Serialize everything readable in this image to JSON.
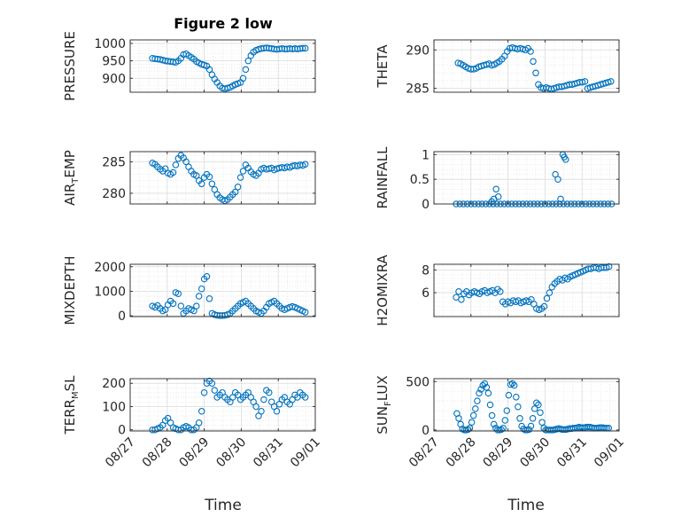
{
  "figure": {
    "title": "Figure 2 low",
    "marker_color": "#0072BD"
  },
  "chart_data": [
    {
      "type": "scatter",
      "ylabel": "PRESSURE",
      "ylabel_sub": "",
      "ylabel_tail": "",
      "xlim": [
        0,
        5
      ],
      "ylim": [
        860,
        1010
      ],
      "yticks": [
        900,
        950,
        1000
      ],
      "x": [
        0.6,
        0.67,
        0.74,
        0.81,
        0.88,
        0.95,
        1.02,
        1.09,
        1.16,
        1.23,
        1.3,
        1.37,
        1.44,
        1.51,
        1.58,
        1.65,
        1.72,
        1.79,
        1.86,
        1.93,
        2.0,
        2.07,
        2.14,
        2.21,
        2.28,
        2.35,
        2.42,
        2.49,
        2.56,
        2.63,
        2.7,
        2.77,
        2.84,
        2.91,
        2.98,
        3.05,
        3.12,
        3.19,
        3.26,
        3.33,
        3.4,
        3.47,
        3.54,
        3.61,
        3.68,
        3.75,
        3.82,
        3.89,
        3.96,
        4.03,
        4.1,
        4.17,
        4.24,
        4.31,
        4.38,
        4.45,
        4.52,
        4.59,
        4.66,
        4.73
      ],
      "y": [
        957,
        956,
        955,
        954,
        952,
        950,
        949,
        948,
        947,
        946,
        950,
        957,
        968,
        970,
        965,
        960,
        955,
        948,
        944,
        940,
        938,
        935,
        925,
        910,
        898,
        888,
        878,
        872,
        870,
        872,
        874,
        878,
        882,
        885,
        888,
        900,
        925,
        950,
        965,
        975,
        980,
        983,
        985,
        986,
        987,
        986,
        985,
        984,
        983,
        984,
        985,
        984,
        984,
        985,
        984,
        985,
        984,
        985,
        986,
        986
      ]
    },
    {
      "type": "scatter",
      "ylabel": "THETA",
      "ylabel_sub": "",
      "ylabel_tail": "",
      "xlim": [
        0,
        5
      ],
      "ylim": [
        284.5,
        291.3
      ],
      "yticks": [
        285,
        290
      ],
      "x": [
        0.65,
        0.72,
        0.79,
        0.86,
        0.93,
        1.0,
        1.07,
        1.14,
        1.21,
        1.28,
        1.35,
        1.42,
        1.49,
        1.56,
        1.63,
        1.7,
        1.77,
        1.84,
        1.91,
        1.98,
        2.05,
        2.12,
        2.19,
        2.26,
        2.33,
        2.4,
        2.47,
        2.54,
        2.61,
        2.68,
        2.75,
        2.82,
        2.89,
        2.96,
        3.03,
        3.1,
        3.17,
        3.24,
        3.31,
        3.38,
        3.45,
        3.52,
        3.59,
        3.66,
        3.73,
        3.8,
        3.87,
        3.94,
        4.01,
        4.08,
        4.15,
        4.22,
        4.29,
        4.36,
        4.43,
        4.5,
        4.57,
        4.64,
        4.71,
        4.78
      ],
      "y": [
        288.3,
        288.2,
        288.0,
        287.8,
        287.6,
        287.5,
        287.5,
        287.6,
        287.8,
        287.9,
        288.0,
        288.1,
        288.2,
        288.0,
        288.1,
        288.3,
        288.5,
        288.8,
        289.2,
        289.8,
        290.2,
        290.3,
        290.2,
        290.1,
        290.2,
        290.1,
        290.0,
        290.2,
        289.8,
        288.5,
        287.0,
        285.5,
        285.1,
        285.0,
        285.1,
        285.0,
        284.9,
        285.0,
        285.1,
        285.2,
        285.2,
        285.3,
        285.4,
        285.5,
        285.5,
        285.6,
        285.7,
        285.8,
        285.8,
        285.9,
        285.0,
        285.1,
        285.2,
        285.3,
        285.4,
        285.5,
        285.6,
        285.7,
        285.8,
        285.9
      ]
    },
    {
      "type": "scatter",
      "ylabel": "AIR",
      "ylabel_sub": "T",
      "ylabel_tail": "EMP",
      "xlim": [
        0,
        5
      ],
      "ylim": [
        278.3,
        286.6
      ],
      "yticks": [
        280,
        285
      ],
      "x": [
        0.6,
        0.67,
        0.74,
        0.81,
        0.88,
        0.95,
        1.02,
        1.09,
        1.16,
        1.23,
        1.3,
        1.37,
        1.44,
        1.51,
        1.58,
        1.65,
        1.72,
        1.79,
        1.86,
        1.93,
        2.0,
        2.07,
        2.14,
        2.21,
        2.28,
        2.35,
        2.42,
        2.49,
        2.56,
        2.63,
        2.7,
        2.77,
        2.84,
        2.91,
        2.98,
        3.05,
        3.12,
        3.19,
        3.26,
        3.33,
        3.4,
        3.47,
        3.54,
        3.61,
        3.68,
        3.75,
        3.82,
        3.89,
        3.96,
        4.03,
        4.1,
        4.17,
        4.24,
        4.31,
        4.38,
        4.45,
        4.52,
        4.59,
        4.66,
        4.73
      ],
      "y": [
        284.8,
        284.6,
        284.2,
        283.8,
        283.5,
        283.9,
        283.2,
        283.0,
        283.3,
        284.5,
        285.5,
        286.0,
        285.6,
        285.0,
        284.2,
        283.5,
        283.0,
        282.8,
        282.0,
        281.5,
        282.5,
        283.0,
        282.6,
        281.5,
        280.6,
        279.8,
        279.3,
        279.0,
        278.8,
        279.0,
        279.4,
        279.8,
        280.2,
        281.0,
        282.5,
        283.5,
        284.5,
        284.0,
        283.4,
        283.0,
        282.8,
        283.2,
        283.8,
        284.0,
        283.8,
        283.9,
        284.0,
        283.7,
        283.9,
        284.0,
        284.1,
        284.0,
        284.2,
        284.1,
        284.3,
        284.4,
        284.3,
        284.5,
        284.4,
        284.6
      ]
    },
    {
      "type": "scatter",
      "ylabel": "RAINFALL",
      "ylabel_sub": "",
      "ylabel_tail": "",
      "xlim": [
        0,
        5
      ],
      "ylim": [
        0,
        1.06
      ],
      "yticks": [
        0,
        0.5,
        1
      ],
      "x": [
        0.6,
        0.7,
        0.8,
        0.9,
        1.0,
        1.1,
        1.2,
        1.3,
        1.4,
        1.5,
        1.6,
        1.7,
        1.8,
        1.9,
        2.0,
        2.1,
        2.2,
        2.3,
        2.4,
        2.5,
        2.6,
        2.7,
        2.8,
        2.9,
        3.0,
        3.1,
        3.2,
        3.3,
        3.4,
        3.5,
        3.6,
        3.7,
        3.8,
        3.9,
        4.0,
        4.1,
        4.2,
        4.3,
        4.4,
        4.5,
        4.6,
        4.7,
        4.8,
        1.62,
        1.68,
        1.74,
        1.56,
        3.28,
        3.35,
        3.48,
        3.52,
        3.56,
        3.42
      ],
      "y": [
        0,
        0,
        0,
        0,
        0,
        0,
        0,
        0,
        0,
        0,
        0,
        0,
        0,
        0,
        0,
        0,
        0,
        0,
        0,
        0,
        0,
        0,
        0,
        0,
        0,
        0,
        0,
        0,
        0,
        0,
        0,
        0,
        0,
        0,
        0,
        0,
        0,
        0,
        0,
        0,
        0,
        0,
        0,
        0.1,
        0.3,
        0.15,
        0.05,
        0.6,
        0.5,
        1.0,
        0.95,
        0.9,
        0.1
      ]
    },
    {
      "type": "scatter",
      "ylabel": "MIXDEPTH",
      "ylabel_sub": "",
      "ylabel_tail": "",
      "xlim": [
        0,
        5
      ],
      "ylim": [
        -30,
        2100
      ],
      "yticks": [
        0,
        1000,
        2000
      ],
      "x": [
        0.6,
        0.67,
        0.74,
        0.81,
        0.88,
        0.95,
        1.02,
        1.09,
        1.16,
        1.23,
        1.3,
        1.37,
        1.44,
        1.51,
        1.58,
        1.65,
        1.72,
        1.79,
        1.86,
        1.93,
        2.0,
        2.07,
        2.14,
        2.21,
        2.28,
        2.35,
        2.42,
        2.49,
        2.56,
        2.63,
        2.7,
        2.77,
        2.84,
        2.91,
        2.98,
        3.05,
        3.12,
        3.19,
        3.26,
        3.33,
        3.4,
        3.47,
        3.54,
        3.61,
        3.68,
        3.75,
        3.82,
        3.89,
        3.96,
        4.03,
        4.1,
        4.17,
        4.24,
        4.31,
        4.38,
        4.45,
        4.52,
        4.59,
        4.66,
        4.73
      ],
      "y": [
        400,
        350,
        420,
        300,
        200,
        250,
        450,
        600,
        500,
        950,
        900,
        400,
        100,
        200,
        300,
        250,
        200,
        400,
        800,
        1100,
        1500,
        1600,
        700,
        100,
        50,
        20,
        10,
        10,
        20,
        50,
        100,
        200,
        300,
        400,
        500,
        550,
        600,
        500,
        400,
        300,
        200,
        150,
        100,
        200,
        350,
        500,
        550,
        600,
        500,
        400,
        300,
        250,
        300,
        350,
        380,
        350,
        300,
        250,
        200,
        150
      ]
    },
    {
      "type": "scatter",
      "ylabel": "H2OMIXRA",
      "ylabel_sub": "",
      "ylabel_tail": "",
      "xlim": [
        0,
        5
      ],
      "ylim": [
        3.9,
        8.5
      ],
      "yticks": [
        6,
        8
      ],
      "x": [
        0.6,
        0.67,
        0.74,
        0.81,
        0.88,
        0.95,
        1.02,
        1.09,
        1.16,
        1.23,
        1.3,
        1.37,
        1.44,
        1.51,
        1.58,
        1.65,
        1.72,
        1.79,
        1.86,
        1.93,
        2.0,
        2.07,
        2.14,
        2.21,
        2.28,
        2.35,
        2.42,
        2.49,
        2.56,
        2.63,
        2.7,
        2.77,
        2.84,
        2.91,
        2.98,
        3.05,
        3.12,
        3.19,
        3.26,
        3.33,
        3.4,
        3.47,
        3.54,
        3.61,
        3.68,
        3.75,
        3.82,
        3.89,
        3.96,
        4.03,
        4.1,
        4.17,
        4.24,
        4.31,
        4.38,
        4.45,
        4.52,
        4.59,
        4.66,
        4.73
      ],
      "y": [
        5.6,
        6.1,
        5.4,
        5.9,
        6.1,
        5.8,
        6.0,
        6.1,
        6.0,
        5.9,
        6.1,
        6.2,
        6.0,
        6.1,
        6.2,
        6.0,
        6.3,
        6.1,
        5.2,
        5.0,
        5.2,
        5.1,
        5.3,
        5.2,
        5.3,
        5.1,
        5.2,
        5.3,
        5.2,
        5.4,
        5.0,
        4.6,
        4.5,
        4.6,
        4.8,
        5.5,
        6.0,
        6.5,
        6.8,
        7.0,
        7.2,
        7.1,
        7.3,
        7.2,
        7.4,
        7.5,
        7.6,
        7.7,
        7.8,
        7.9,
        8.0,
        8.1,
        8.1,
        8.2,
        8.2,
        8.1,
        8.2,
        8.2,
        8.2,
        8.3
      ]
    },
    {
      "type": "scatter",
      "ylabel": "TERR",
      "ylabel_sub": "M",
      "ylabel_tail": "SL",
      "xlim": [
        0,
        5
      ],
      "ylim": [
        -5,
        220
      ],
      "yticks": [
        0,
        100,
        200
      ],
      "x": [
        0.6,
        0.67,
        0.74,
        0.81,
        0.88,
        0.95,
        1.02,
        1.09,
        1.16,
        1.23,
        1.3,
        1.37,
        1.44,
        1.51,
        1.58,
        1.65,
        1.72,
        1.79,
        1.86,
        1.93,
        2.0,
        2.07,
        2.14,
        2.21,
        2.28,
        2.35,
        2.42,
        2.49,
        2.56,
        2.63,
        2.7,
        2.77,
        2.84,
        2.91,
        2.98,
        3.05,
        3.12,
        3.19,
        3.26,
        3.33,
        3.4,
        3.47,
        3.54,
        3.61,
        3.68,
        3.75,
        3.82,
        3.89,
        3.96,
        4.03,
        4.1,
        4.17,
        4.24,
        4.31,
        4.38,
        4.45,
        4.52,
        4.59,
        4.66,
        4.73
      ],
      "y": [
        0,
        0,
        5,
        10,
        20,
        40,
        50,
        30,
        10,
        5,
        0,
        0,
        10,
        15,
        10,
        0,
        0,
        10,
        30,
        80,
        160,
        200,
        210,
        200,
        170,
        140,
        150,
        160,
        140,
        130,
        120,
        140,
        160,
        150,
        130,
        140,
        150,
        160,
        140,
        120,
        100,
        60,
        80,
        130,
        170,
        160,
        120,
        100,
        80,
        110,
        130,
        140,
        120,
        110,
        130,
        150,
        140,
        160,
        150,
        140
      ]
    },
    {
      "type": "scatter",
      "ylabel": "SUN",
      "ylabel_sub": "F",
      "ylabel_tail": "LUX",
      "xlim": [
        0,
        5
      ],
      "ylim": [
        -10,
        530
      ],
      "yticks": [
        0,
        500
      ],
      "x": [
        0.62,
        0.67,
        0.72,
        0.77,
        0.82,
        0.87,
        0.92,
        0.97,
        1.02,
        1.07,
        1.12,
        1.17,
        1.22,
        1.27,
        1.32,
        1.37,
        1.42,
        1.47,
        1.52,
        1.57,
        1.62,
        1.67,
        1.72,
        1.77,
        1.82,
        1.87,
        1.92,
        1.97,
        2.02,
        2.07,
        2.12,
        2.17,
        2.22,
        2.27,
        2.32,
        2.37,
        2.42,
        2.47,
        2.52,
        2.57,
        2.62,
        2.67,
        2.72,
        2.77,
        2.82,
        2.87,
        2.92,
        2.97,
        3.02,
        3.07,
        3.12,
        3.17,
        3.22,
        3.27,
        3.32,
        3.37,
        3.42,
        3.47,
        3.52,
        3.57,
        3.62,
        3.67,
        3.72,
        3.77,
        3.82,
        3.87,
        3.92,
        3.97,
        4.02,
        4.07,
        4.12,
        4.17,
        4.22,
        4.27,
        4.32,
        4.37,
        4.42,
        4.47,
        4.52,
        4.57,
        4.62,
        4.67,
        4.72
      ],
      "y": [
        170,
        120,
        60,
        10,
        0,
        0,
        5,
        20,
        80,
        150,
        220,
        300,
        380,
        420,
        460,
        480,
        440,
        380,
        260,
        150,
        60,
        20,
        0,
        0,
        5,
        20,
        100,
        200,
        360,
        470,
        480,
        460,
        340,
        240,
        120,
        40,
        10,
        0,
        0,
        5,
        40,
        120,
        220,
        280,
        260,
        180,
        80,
        20,
        0,
        0,
        0,
        0,
        0,
        5,
        10,
        15,
        10,
        5,
        5,
        5,
        10,
        15,
        15,
        20,
        20,
        25,
        30,
        25,
        25,
        25,
        30,
        30,
        30,
        25,
        20,
        20,
        20,
        25,
        25,
        25,
        20,
        20,
        20
      ]
    }
  ],
  "axes": {
    "xtick_labels": [
      "08/27",
      "08/28",
      "08/29",
      "08/30",
      "08/31",
      "09/01"
    ],
    "xlabel": "Time"
  }
}
